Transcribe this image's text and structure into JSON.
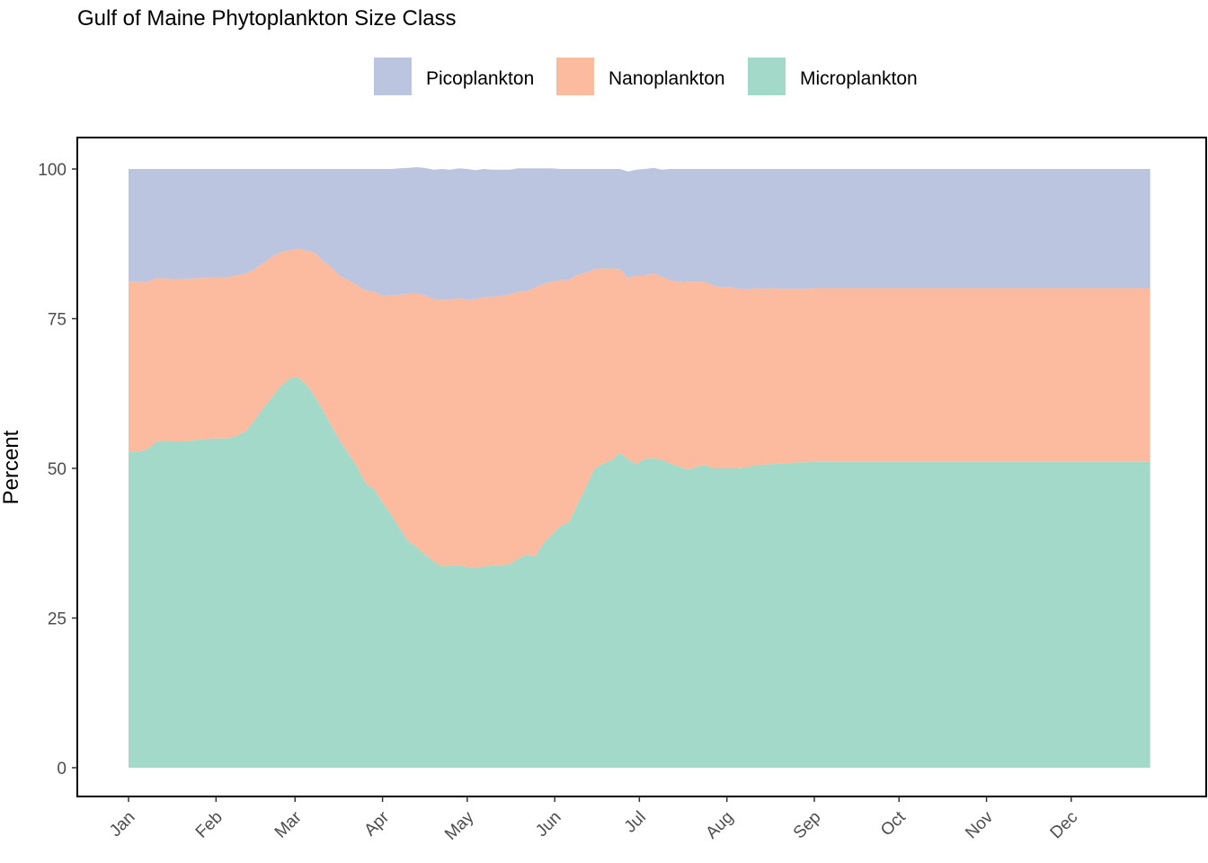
{
  "chart_data": {
    "type": "area",
    "stacked": true,
    "title": "Gulf of Maine Phytoplankton Size Class",
    "ylabel": "Percent",
    "xlabel": "",
    "ylim": [
      0,
      100
    ],
    "yticks": [
      0,
      25,
      50,
      75,
      100
    ],
    "months": [
      "Jan",
      "Feb",
      "Mar",
      "Apr",
      "May",
      "Jun",
      "Jul",
      "Aug",
      "Sep",
      "Oct",
      "Nov",
      "Dec"
    ],
    "legend_position": "top",
    "grid": false,
    "x": [
      1,
      3,
      5,
      8,
      11,
      14,
      17,
      20,
      23,
      26,
      29,
      31,
      33,
      35,
      37,
      39,
      41,
      43,
      46,
      49,
      52,
      55,
      58,
      61,
      64,
      67,
      70,
      73,
      76,
      79,
      82,
      85,
      88,
      91,
      94,
      97,
      100,
      103,
      106,
      109,
      112,
      115,
      118,
      121,
      124,
      127,
      130,
      133,
      136,
      139,
      142,
      145,
      148,
      151,
      154,
      157,
      160,
      163,
      166,
      169,
      172,
      175,
      178,
      181,
      184,
      187,
      190,
      193,
      196,
      199,
      202,
      205,
      208,
      211,
      214,
      217,
      220,
      223,
      226,
      229,
      232,
      235,
      238,
      241,
      244,
      247,
      250,
      253,
      256,
      259,
      262,
      265,
      268,
      271,
      274,
      277,
      280,
      283,
      286,
      289,
      292,
      295,
      298,
      301,
      304,
      307,
      310,
      313,
      316,
      319,
      322,
      325,
      328,
      331,
      334,
      337,
      340,
      343,
      346,
      349,
      352,
      355,
      358,
      361,
      363
    ],
    "series": [
      {
        "name": "Microplankton",
        "color": "#a3d9c9",
        "values": [
          52.8,
          52.8,
          52.8,
          53.3,
          54.5,
          54.6,
          54.5,
          54.5,
          54.6,
          54.8,
          54.9,
          55.0,
          55.0,
          55.0,
          55.1,
          55.4,
          55.8,
          56.4,
          58.3,
          60.2,
          62.0,
          63.8,
          65.0,
          65.3,
          64.0,
          62.0,
          59.6,
          57.0,
          54.5,
          52.4,
          50.3,
          47.5,
          46.5,
          44.3,
          42.3,
          40.0,
          37.9,
          36.9,
          35.6,
          34.5,
          33.6,
          33.8,
          33.8,
          33.5,
          33.4,
          33.6,
          33.8,
          33.8,
          34.0,
          34.9,
          35.6,
          35.3,
          37.5,
          38.9,
          40.4,
          41.0,
          44.0,
          46.8,
          49.9,
          50.8,
          51.3,
          52.6,
          51.5,
          50.7,
          51.6,
          51.7,
          51.4,
          50.8,
          50.3,
          49.8,
          50.2,
          50.6,
          50.0,
          50.0,
          50.0,
          50.0,
          50.2,
          50.5,
          50.6,
          50.7,
          50.8,
          50.9,
          51.0,
          51.0,
          51.1,
          51.1,
          51.1,
          51.1,
          51.1,
          51.1,
          51.1,
          51.1,
          51.1,
          51.1,
          51.1,
          51.1,
          51.1,
          51.1,
          51.1,
          51.1,
          51.1,
          51.1,
          51.1,
          51.1,
          51.1,
          51.1,
          51.1,
          51.1,
          51.1,
          51.1,
          51.1,
          51.1,
          51.1,
          51.1,
          51.1,
          51.1,
          51.1,
          51.1,
          51.1,
          51.1,
          51.1,
          51.1,
          51.1,
          51.1,
          51.1
        ]
      },
      {
        "name": "Nanoplankton",
        "color": "#fcba9f",
        "values": [
          28.4,
          28.4,
          28.3,
          27.9,
          27.3,
          27.1,
          27.1,
          27.1,
          27.1,
          27.0,
          26.9,
          26.9,
          26.9,
          26.9,
          26.9,
          26.8,
          26.6,
          26.2,
          25.1,
          24.2,
          23.4,
          22.3,
          21.4,
          21.4,
          22.4,
          24.0,
          25.0,
          26.5,
          27.6,
          29.0,
          30.3,
          32.2,
          33.0,
          34.5,
          36.6,
          39.0,
          41.3,
          42.3,
          43.3,
          43.8,
          44.6,
          44.4,
          44.6,
          44.7,
          44.9,
          45.0,
          44.9,
          45.0,
          45.1,
          44.6,
          44.0,
          44.9,
          43.3,
          42.3,
          41.0,
          40.5,
          38.3,
          35.9,
          33.4,
          32.6,
          32.1,
          30.7,
          30.3,
          31.5,
          30.6,
          30.9,
          30.6,
          30.6,
          30.8,
          31.4,
          31.0,
          30.6,
          30.6,
          30.2,
          30.3,
          30.0,
          29.7,
          29.6,
          29.4,
          29.4,
          29.2,
          29.1,
          29.0,
          29.0,
          29.0,
          29.0,
          29.0,
          29.0,
          29.0,
          29.0,
          29.0,
          29.0,
          29.0,
          29.0,
          29.0,
          29.0,
          29.0,
          29.0,
          29.0,
          29.0,
          29.0,
          29.0,
          29.0,
          29.0,
          29.0,
          29.0,
          29.0,
          29.0,
          29.0,
          29.0,
          29.0,
          29.0,
          29.0,
          29.0,
          29.0,
          29.0,
          29.0,
          29.0,
          29.0,
          29.0,
          29.0,
          29.0,
          29.0,
          29.0,
          29.0
        ]
      },
      {
        "name": "Picoplankton",
        "color": "#bbc5df",
        "values": [
          18.8,
          18.8,
          18.9,
          18.8,
          18.2,
          18.3,
          18.4,
          18.4,
          18.3,
          18.2,
          18.2,
          18.1,
          18.1,
          18.1,
          18.0,
          17.8,
          17.6,
          17.4,
          16.6,
          15.6,
          14.6,
          13.9,
          13.6,
          13.3,
          13.6,
          14.0,
          15.4,
          16.5,
          17.9,
          18.6,
          19.4,
          20.3,
          20.5,
          21.2,
          21.1,
          21.1,
          21.0,
          21.1,
          21.3,
          21.6,
          21.8,
          21.7,
          21.7,
          21.8,
          21.5,
          21.4,
          21.2,
          21.1,
          20.8,
          20.6,
          20.5,
          19.9,
          19.3,
          18.9,
          18.6,
          18.5,
          17.7,
          17.3,
          16.7,
          16.6,
          16.6,
          16.7,
          17.8,
          17.7,
          17.8,
          17.6,
          17.9,
          18.6,
          18.9,
          18.8,
          18.8,
          18.8,
          19.4,
          19.8,
          19.7,
          20.0,
          20.1,
          19.9,
          20.0,
          19.9,
          20.0,
          20.0,
          20.0,
          20.0,
          19.9,
          19.9,
          19.9,
          19.9,
          19.9,
          19.9,
          19.9,
          19.9,
          19.9,
          19.9,
          19.9,
          19.9,
          19.9,
          19.9,
          19.9,
          19.9,
          19.9,
          19.9,
          19.9,
          19.9,
          19.9,
          19.9,
          19.9,
          19.9,
          19.9,
          19.9,
          19.9,
          19.9,
          19.9,
          19.9,
          19.9,
          19.9,
          19.9,
          19.9,
          19.9,
          19.9,
          19.9,
          19.9,
          19.9,
          19.9,
          19.9
        ]
      }
    ],
    "legend_order": [
      "Picoplankton",
      "Nanoplankton",
      "Microplankton"
    ]
  }
}
